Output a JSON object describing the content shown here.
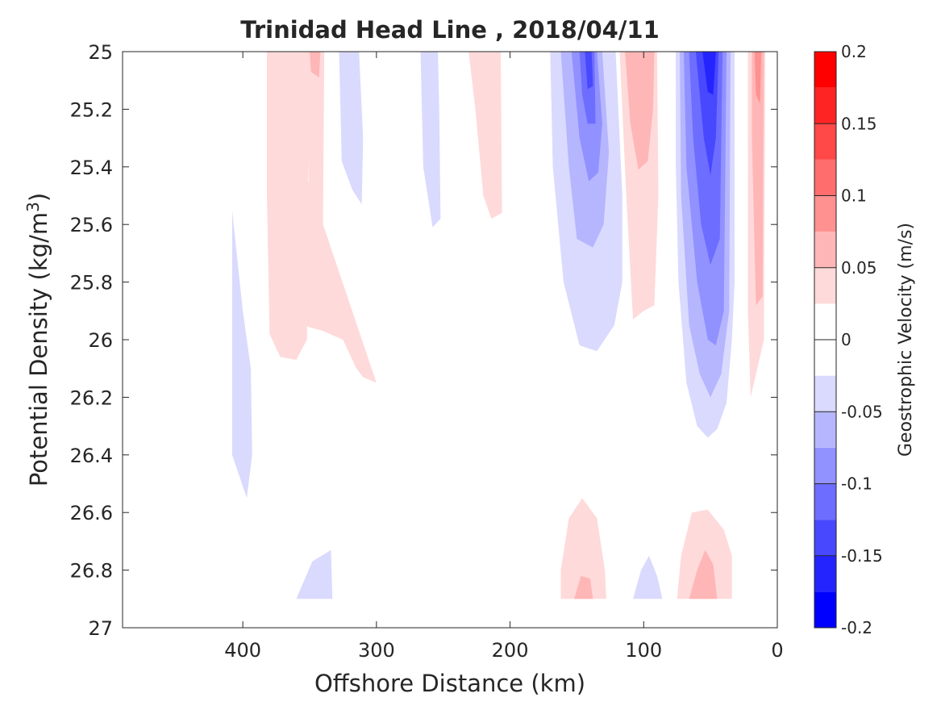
{
  "chart_data": {
    "type": "contour",
    "title": "Trinidad Head Line , 2018/04/11",
    "xlabel": "Offshore Distance (km)",
    "ylabel_main": "Potential Density (kg/m",
    "ylabel_sup": "3",
    "ylabel_close": ")",
    "xlim": [
      490,
      0
    ],
    "ylim": [
      25,
      27
    ],
    "y_reversed": true,
    "grid": false,
    "xticks": [
      400,
      300,
      200,
      100,
      0
    ],
    "xtick_labels": [
      "400",
      "300",
      "200",
      "100",
      "0"
    ],
    "yticks": [
      25,
      25.2,
      25.4,
      25.6,
      25.8,
      26,
      26.2,
      26.4,
      26.6,
      26.8,
      27
    ],
    "ytick_labels": [
      "25",
      "25.2",
      "25.4",
      "25.6",
      "25.8",
      "26",
      "26.2",
      "26.4",
      "26.6",
      "26.8",
      "27"
    ],
    "colorbar": {
      "label": "Geostrophic Velocity (m/s)",
      "range": [
        -0.2,
        0.2
      ],
      "bands": [
        {
          "lo": -0.2,
          "hi": -0.175,
          "color": "#0000ff"
        },
        {
          "lo": -0.175,
          "hi": -0.15,
          "color": "#2424ff"
        },
        {
          "lo": -0.15,
          "hi": -0.125,
          "color": "#4848ff"
        },
        {
          "lo": -0.125,
          "hi": -0.1,
          "color": "#6d6dff"
        },
        {
          "lo": -0.1,
          "hi": -0.075,
          "color": "#9191ff"
        },
        {
          "lo": -0.075,
          "hi": -0.05,
          "color": "#b6b6ff"
        },
        {
          "lo": -0.05,
          "hi": -0.025,
          "color": "#dadaff"
        },
        {
          "lo": -0.025,
          "hi": 0,
          "color": "#ffffff"
        },
        {
          "lo": 0,
          "hi": 0.025,
          "color": "#ffffff"
        },
        {
          "lo": 0.025,
          "hi": 0.05,
          "color": "#ffdada"
        },
        {
          "lo": 0.05,
          "hi": 0.075,
          "color": "#ffb6b6"
        },
        {
          "lo": 0.075,
          "hi": 0.1,
          "color": "#ff9191"
        },
        {
          "lo": 0.1,
          "hi": 0.125,
          "color": "#ff6d6d"
        },
        {
          "lo": 0.125,
          "hi": 0.15,
          "color": "#ff4848"
        },
        {
          "lo": 0.15,
          "hi": 0.175,
          "color": "#ff2424"
        },
        {
          "lo": 0.175,
          "hi": 0.2,
          "color": "#ff0000"
        }
      ],
      "ticks": [
        -0.2,
        -0.15,
        -0.1,
        -0.05,
        0,
        0.05,
        0.1,
        0.15,
        0.2
      ],
      "tick_labels": [
        "-0.2",
        "-0.15",
        "-0.1",
        "-0.05",
        "0",
        "0.05",
        "0.1",
        "0.15",
        "0.2"
      ]
    },
    "regions": [
      {
        "v": 0.035,
        "pts": [
          [
            380,
            25.05
          ],
          [
            378,
            25.17
          ],
          [
            372,
            25.16
          ],
          [
            365,
            25.17
          ],
          [
            362,
            25.88
          ],
          [
            355,
            25.95
          ],
          [
            340,
            25.97
          ],
          [
            325,
            26.0
          ],
          [
            320,
            26.05
          ],
          [
            315,
            26.1
          ],
          [
            310,
            26.13
          ],
          [
            300,
            26.15
          ]
        ]
      },
      {
        "v": 0.035,
        "pts": [
          [
            382,
            25.0
          ],
          [
            350,
            25.0
          ],
          [
            352,
            26.0
          ],
          [
            360,
            26.07
          ],
          [
            372,
            26.06
          ],
          [
            380,
            25.98
          ],
          [
            382,
            25.5
          ]
        ]
      },
      {
        "v": 0.035,
        "pts": [
          [
            352,
            25.0
          ],
          [
            339,
            25.0
          ],
          [
            340,
            25.6
          ],
          [
            350,
            25.6
          ]
        ]
      },
      {
        "v": 0.06,
        "pts": [
          [
            350,
            25.0
          ],
          [
            342,
            25.0
          ],
          [
            343,
            25.09
          ],
          [
            349,
            25.07
          ]
        ]
      },
      {
        "v": -0.035,
        "pts": [
          [
            328,
            25.0
          ],
          [
            313,
            25.0
          ],
          [
            310,
            25.3
          ],
          [
            311,
            25.53
          ],
          [
            318,
            25.48
          ],
          [
            326,
            25.38
          ]
        ]
      },
      {
        "v": -0.035,
        "pts": [
          [
            267,
            25.0
          ],
          [
            254,
            25.0
          ],
          [
            253,
            25.2
          ],
          [
            252,
            25.58
          ],
          [
            258,
            25.61
          ],
          [
            265,
            25.4
          ]
        ]
      },
      {
        "v": 0.035,
        "pts": [
          [
            231,
            25.0
          ],
          [
            207,
            25.0
          ],
          [
            206,
            25.56
          ],
          [
            214,
            25.58
          ],
          [
            220,
            25.5
          ],
          [
            226,
            25.2
          ]
        ]
      },
      {
        "v": -0.035,
        "pts": [
          [
            170,
            25.0
          ],
          [
            121,
            25.0
          ],
          [
            116,
            25.5
          ],
          [
            116,
            25.8
          ],
          [
            122,
            25.95
          ],
          [
            135,
            26.04
          ],
          [
            148,
            26.02
          ],
          [
            160,
            25.8
          ],
          [
            168,
            25.4
          ]
        ]
      },
      {
        "v": -0.06,
        "pts": [
          [
            162,
            25.0
          ],
          [
            131,
            25.0
          ],
          [
            126,
            25.35
          ],
          [
            130,
            25.6
          ],
          [
            138,
            25.68
          ],
          [
            150,
            25.65
          ],
          [
            156,
            25.4
          ]
        ]
      },
      {
        "v": -0.085,
        "pts": [
          [
            154,
            25.0
          ],
          [
            135,
            25.0
          ],
          [
            131,
            25.25
          ],
          [
            134,
            25.42
          ],
          [
            141,
            25.45
          ],
          [
            148,
            25.3
          ]
        ]
      },
      {
        "v": -0.11,
        "pts": [
          [
            148,
            25.0
          ],
          [
            137,
            25.0
          ],
          [
            136,
            25.25
          ],
          [
            142,
            25.25
          ],
          [
            146,
            25.15
          ]
        ]
      },
      {
        "v": -0.135,
        "pts": [
          [
            144,
            25.0
          ],
          [
            139,
            25.0
          ],
          [
            138,
            25.12
          ],
          [
            142,
            25.13
          ]
        ]
      },
      {
        "v": 0.035,
        "pts": [
          [
            118,
            25.0
          ],
          [
            90,
            25.0
          ],
          [
            89,
            25.5
          ],
          [
            92,
            25.88
          ],
          [
            100,
            25.9
          ],
          [
            108,
            25.93
          ],
          [
            113,
            25.5
          ]
        ]
      },
      {
        "v": 0.06,
        "pts": [
          [
            114,
            25.0
          ],
          [
            92,
            25.0
          ],
          [
            93,
            25.2
          ],
          [
            97,
            25.38
          ],
          [
            104,
            25.41
          ],
          [
            110,
            25.25
          ]
        ]
      },
      {
        "v": -0.035,
        "pts": [
          [
            76,
            25.0
          ],
          [
            32,
            25.0
          ],
          [
            32,
            25.8
          ],
          [
            34,
            26.0
          ],
          [
            38,
            26.22
          ],
          [
            45,
            26.31
          ],
          [
            52,
            26.34
          ],
          [
            60,
            26.3
          ],
          [
            68,
            26.15
          ],
          [
            74,
            25.8
          ],
          [
            76,
            25.4
          ]
        ]
      },
      {
        "v": -0.06,
        "pts": [
          [
            73,
            25.0
          ],
          [
            35,
            25.0
          ],
          [
            36,
            25.9
          ],
          [
            42,
            26.12
          ],
          [
            50,
            26.2
          ],
          [
            58,
            26.12
          ],
          [
            66,
            25.95
          ],
          [
            72,
            25.5
          ]
        ]
      },
      {
        "v": -0.085,
        "pts": [
          [
            70,
            25.0
          ],
          [
            38,
            25.0
          ],
          [
            40,
            25.9
          ],
          [
            46,
            26.02
          ],
          [
            52,
            26.0
          ],
          [
            60,
            25.8
          ],
          [
            68,
            25.4
          ]
        ]
      },
      {
        "v": -0.11,
        "pts": [
          [
            66,
            25.0
          ],
          [
            41,
            25.0
          ],
          [
            43,
            25.65
          ],
          [
            50,
            25.74
          ],
          [
            57,
            25.6
          ],
          [
            63,
            25.3
          ]
        ]
      },
      {
        "v": -0.135,
        "pts": [
          [
            61,
            25.0
          ],
          [
            44,
            25.0
          ],
          [
            46,
            25.3
          ],
          [
            50,
            25.43
          ],
          [
            55,
            25.3
          ]
        ]
      },
      {
        "v": -0.16,
        "pts": [
          [
            56,
            25.0
          ],
          [
            46,
            25.0
          ],
          [
            48,
            25.15
          ],
          [
            52,
            25.14
          ]
        ]
      },
      {
        "v": 0.035,
        "pts": [
          [
            22,
            25.0
          ],
          [
            9,
            25.0
          ],
          [
            10,
            26.0
          ],
          [
            20,
            26.2
          ],
          [
            22,
            25.9
          ]
        ]
      },
      {
        "v": 0.06,
        "pts": [
          [
            19,
            25.0
          ],
          [
            10,
            25.0
          ],
          [
            11,
            25.85
          ],
          [
            16,
            25.88
          ],
          [
            19,
            25.3
          ]
        ]
      },
      {
        "v": 0.085,
        "pts": [
          [
            17,
            25.0
          ],
          [
            12,
            25.0
          ],
          [
            13,
            25.18
          ],
          [
            16,
            25.15
          ]
        ]
      },
      {
        "v": -0.035,
        "pts": [
          [
            408,
            25.55
          ],
          [
            408,
            26.4
          ],
          [
            397,
            26.55
          ],
          [
            393,
            26.4
          ],
          [
            394,
            26.1
          ],
          [
            400,
            25.9
          ]
        ]
      },
      {
        "v": -0.035,
        "pts": [
          [
            360,
            26.9
          ],
          [
            333,
            26.9
          ],
          [
            334,
            26.73
          ],
          [
            348,
            26.77
          ]
        ]
      },
      {
        "v": 0.035,
        "pts": [
          [
            162,
            26.9
          ],
          [
            128,
            26.9
          ],
          [
            129,
            26.8
          ],
          [
            135,
            26.62
          ],
          [
            146,
            26.55
          ],
          [
            156,
            26.62
          ],
          [
            162,
            26.8
          ]
        ]
      },
      {
        "v": 0.06,
        "pts": [
          [
            152,
            26.9
          ],
          [
            138,
            26.9
          ],
          [
            140,
            26.83
          ],
          [
            147,
            26.82
          ]
        ]
      },
      {
        "v": -0.035,
        "pts": [
          [
            108,
            26.9
          ],
          [
            86,
            26.9
          ],
          [
            90,
            26.82
          ],
          [
            96,
            26.75
          ],
          [
            102,
            26.8
          ]
        ]
      },
      {
        "v": 0.035,
        "pts": [
          [
            75,
            26.9
          ],
          [
            34,
            26.9
          ],
          [
            34,
            26.75
          ],
          [
            40,
            26.66
          ],
          [
            52,
            26.59
          ],
          [
            64,
            26.6
          ],
          [
            72,
            26.75
          ]
        ]
      },
      {
        "v": 0.06,
        "pts": [
          [
            66,
            26.9
          ],
          [
            45,
            26.9
          ],
          [
            48,
            26.78
          ],
          [
            54,
            26.73
          ],
          [
            60,
            26.8
          ]
        ]
      }
    ]
  }
}
